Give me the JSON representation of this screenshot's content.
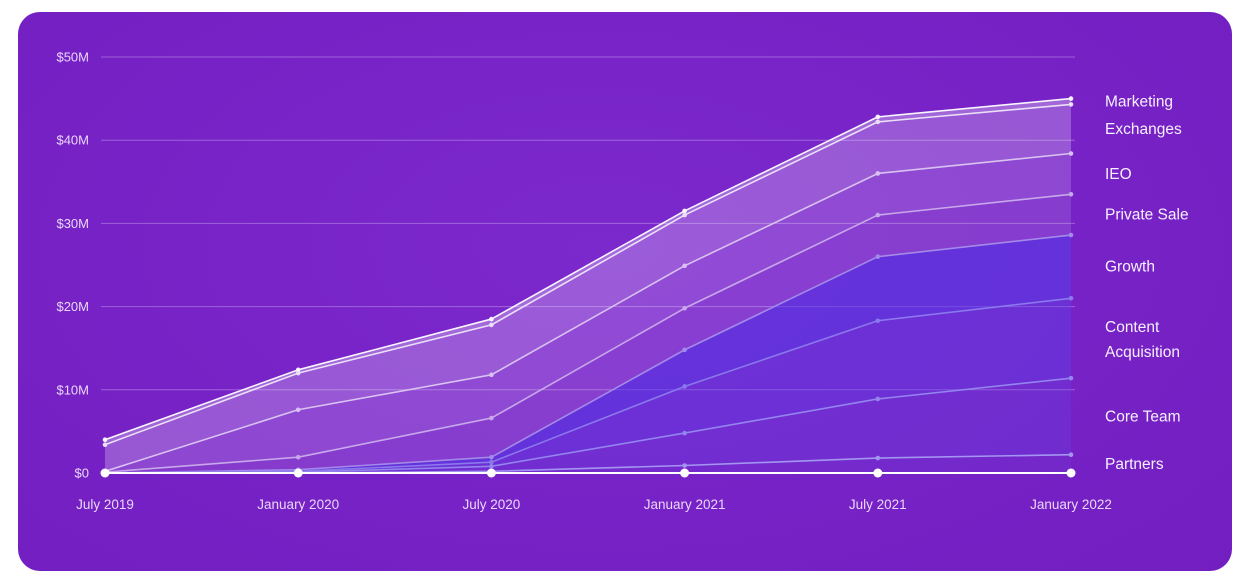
{
  "chart_data": {
    "type": "area",
    "variant": "stacked",
    "values_note": "values are cumulative stack tops, USD millions",
    "x_categories": [
      "July 2019",
      "January 2020",
      "July 2020",
      "January 2021",
      "July 2021",
      "January 2022"
    ],
    "y_ticks": [
      {
        "label": "$0",
        "value": 0
      },
      {
        "label": "$10M",
        "value": 10
      },
      {
        "label": "$20M",
        "value": 20
      },
      {
        "label": "$30M",
        "value": 30
      },
      {
        "label": "$40M",
        "value": 40
      },
      {
        "label": "$50M",
        "value": 50
      }
    ],
    "ylim": [
      0,
      50
    ],
    "y_unit": "USD millions",
    "grid": true,
    "legend_position": "right",
    "series": [
      {
        "name": "Marketing",
        "values": [
          4.0,
          12.4,
          18.5,
          31.5,
          42.8,
          45.0
        ],
        "line_color": "#faf6fd",
        "fill_color": "rgba(252,248,254,0.32)"
      },
      {
        "name": "Exchanges",
        "values": [
          3.4,
          12.0,
          17.8,
          31.0,
          42.2,
          44.3
        ],
        "line_color": "#eadff7",
        "fill_color": "rgba(243,231,251,0.27)"
      },
      {
        "name": "IEO",
        "values": [
          0.2,
          7.6,
          11.8,
          24.9,
          36.0,
          38.4
        ],
        "line_color": "#d9c2f1",
        "fill_color": "rgba(231,212,248,0.21)"
      },
      {
        "name": "Private Sale",
        "values": [
          0.1,
          1.9,
          6.6,
          19.8,
          31.0,
          33.5
        ],
        "line_color": "#c7a8ea",
        "fill_color": "rgba(218,194,243,0.16)"
      },
      {
        "name": "Growth",
        "values": [
          0,
          0.4,
          1.9,
          14.8,
          26.0,
          28.6
        ],
        "line_color": "#a38ae9",
        "fill_color": "rgba(86,61,232,0.58)"
      },
      {
        "name": "Content Acquisition",
        "values": [
          0,
          0.2,
          1.3,
          10.4,
          18.3,
          21.0
        ],
        "line_color": "#8b78ec",
        "fill_color": "rgba(92,68,234,0.40)"
      },
      {
        "name": "Core Team",
        "values": [
          0,
          0.1,
          0.8,
          4.8,
          8.9,
          11.4
        ],
        "line_color": "#9384ee",
        "fill_color": "rgba(99,76,236,0.26)"
      },
      {
        "name": "Partners",
        "values": [
          0,
          0,
          0.2,
          0.9,
          1.8,
          2.2
        ],
        "line_color": "#a396f1",
        "fill_color": "rgba(108,86,238,0.14)"
      }
    ],
    "baseline": {
      "value": 0,
      "color": "#ffffff",
      "marker_radius": 4.5
    },
    "colors": {
      "card_background_center": "#7b28cd",
      "card_background_edge": "#6a1cb6",
      "grid": "rgba(236,220,252,0.35)",
      "axis_text": "#e9d7f9",
      "legend_text": "#f7f0fd"
    }
  }
}
